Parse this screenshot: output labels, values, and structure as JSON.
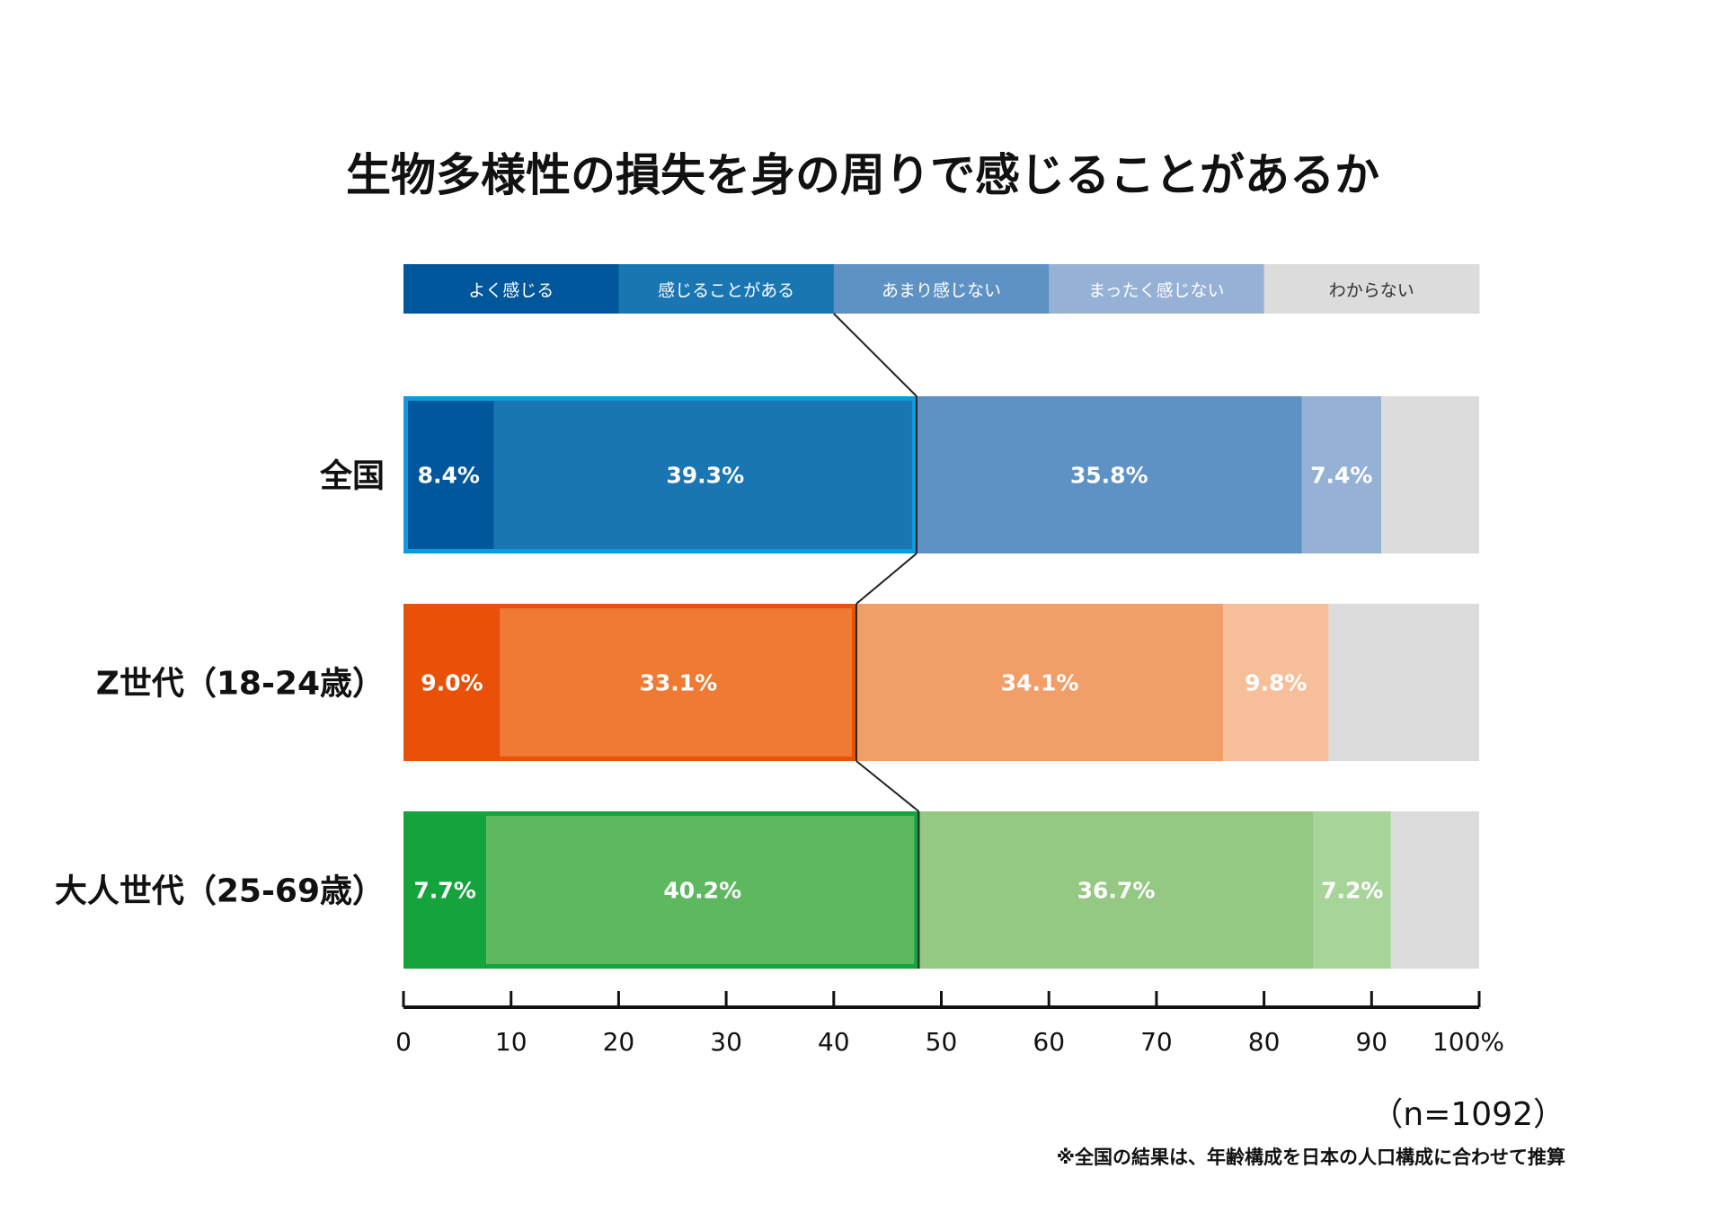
{
  "chart_data": {
    "type": "bar",
    "orientation": "horizontal",
    "stacked": true,
    "title": "生物多様性の損失を身の周りで感じることがあるか",
    "legend_position": "top",
    "legend": [
      {
        "name": "よく感じる",
        "color": "#01579b",
        "text_color": "#ffffff"
      },
      {
        "name": "感じることがある",
        "color": "#1976b3",
        "text_color": "#ffffff"
      },
      {
        "name": "あまり感じない",
        "color": "#5e92c4",
        "text_color": "#ffffff"
      },
      {
        "name": "まったく感じない",
        "color": "#96b1d6",
        "text_color": "#ffffff"
      },
      {
        "name": "わからない",
        "color": "#dcdcdc",
        "text_color": "#333333"
      }
    ],
    "categories": [
      "全国",
      "Z世代（18-24歳）",
      "大人世代（25-69歳）"
    ],
    "rows": [
      {
        "label": "全国",
        "values": [
          8.4,
          39.3,
          35.8,
          7.4,
          9.1
        ],
        "labels": [
          "8.4%",
          "39.3%",
          "35.8%",
          "7.4%",
          ""
        ],
        "colors": [
          "#01579b",
          "#1976b3",
          "#5e92c4",
          "#96b1d6",
          "#dcdcdc"
        ],
        "highlight_color": "#0a9be0"
      },
      {
        "label": "Z世代（18-24歳）",
        "values": [
          9.0,
          33.1,
          34.1,
          9.8,
          14.0
        ],
        "labels": [
          "9.0%",
          "33.1%",
          "34.1%",
          "9.8%",
          ""
        ],
        "colors": [
          "#e85107",
          "#ee7a34",
          "#f29e68",
          "#f6bf99",
          "#dcdcdc"
        ],
        "highlight_color": "#e85107"
      },
      {
        "label": "大人世代（25-69歳）",
        "values": [
          7.7,
          40.2,
          36.7,
          7.2,
          8.2
        ],
        "labels": [
          "7.7%",
          "40.2%",
          "36.7%",
          "7.2%",
          ""
        ],
        "colors": [
          "#14a33c",
          "#5db860",
          "#94c883",
          "#a7d498",
          "#dcdcdc"
        ],
        "highlight_color": "#14a33c"
      }
    ],
    "x_ticks": [
      {
        "value": 0,
        "label": "0"
      },
      {
        "value": 10,
        "label": "10"
      },
      {
        "value": 20,
        "label": "20"
      },
      {
        "value": 30,
        "label": "30"
      },
      {
        "value": 40,
        "label": "40"
      },
      {
        "value": 50,
        "label": "50"
      },
      {
        "value": 60,
        "label": "60"
      },
      {
        "value": 70,
        "label": "70"
      },
      {
        "value": 80,
        "label": "80"
      },
      {
        "value": 90,
        "label": "90"
      },
      {
        "value": 100,
        "label": "100%"
      }
    ],
    "xlim": [
      0,
      100
    ],
    "sample_note": "（n=1092）",
    "footnote": "※全国の結果は、年齢構成を日本の人口構成に合わせて推算"
  }
}
